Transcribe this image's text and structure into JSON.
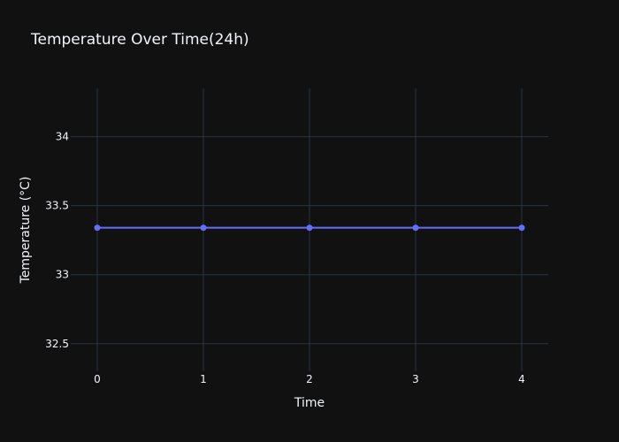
{
  "chart_data": {
    "type": "line",
    "title": "Temperature Over Time(24h)",
    "xlabel": "Time",
    "ylabel": "Temperature (°C)",
    "x": [
      0,
      1,
      2,
      3,
      4
    ],
    "x_ticks": [
      0,
      1,
      2,
      3,
      4
    ],
    "y_ticks": [
      32.5,
      33,
      33.5,
      34
    ],
    "xlim": [
      -0.25,
      4.25
    ],
    "ylim": [
      32.3,
      34.35
    ],
    "grid": true,
    "legend": "none",
    "series": [
      {
        "values": [
          33.34,
          33.34,
          33.34,
          33.34,
          33.34
        ],
        "color": "#636efa",
        "mode": "lines+markers"
      }
    ],
    "colors": {
      "background": "#111111",
      "grid": "#283442",
      "text": "#f2f5fa"
    }
  }
}
